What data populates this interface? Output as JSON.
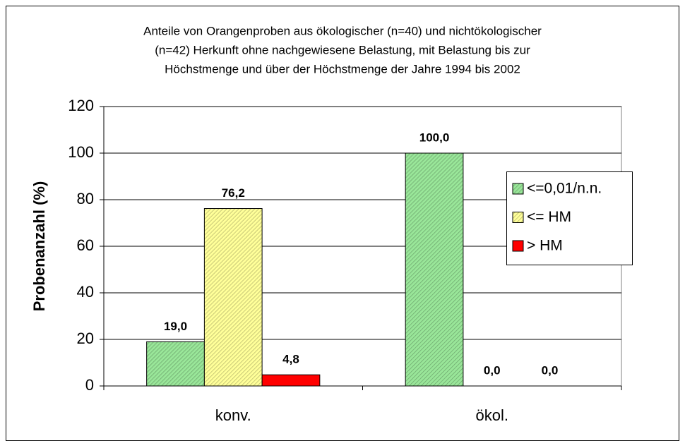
{
  "chart_data": {
    "type": "bar",
    "title": [
      "Anteile von Orangenproben aus ökologischer (n=40) und nichtökologischer",
      "(n=42) Herkunft ohne nachgewiesene Belastung, mit Belastung bis zur",
      "Höchstmenge und über der Höchstmenge der Jahre 1994 bis 2002"
    ],
    "y_label": "Probenanzahl (%)",
    "categories": [
      "konv.",
      "ökol."
    ],
    "series": [
      {
        "name": "<=0,01/n.n.",
        "color": "#99e699",
        "hatch": true,
        "values": [
          19.0,
          100.0
        ],
        "value_labels": [
          "19,0",
          "100,0"
        ]
      },
      {
        "name": "<= HM",
        "color": "#ffff99",
        "hatch": true,
        "values": [
          76.2,
          0.0
        ],
        "value_labels": [
          "76,2",
          "0,0"
        ]
      },
      {
        "name": "> HM",
        "color": "#ff0000",
        "hatch": false,
        "values": [
          4.8,
          0.0
        ],
        "value_labels": [
          "4,8",
          "0,0"
        ]
      }
    ],
    "ylim": [
      0,
      120
    ],
    "yticks": [
      0,
      20,
      40,
      60,
      80,
      100,
      120
    ],
    "grid": true,
    "legend": "right"
  }
}
